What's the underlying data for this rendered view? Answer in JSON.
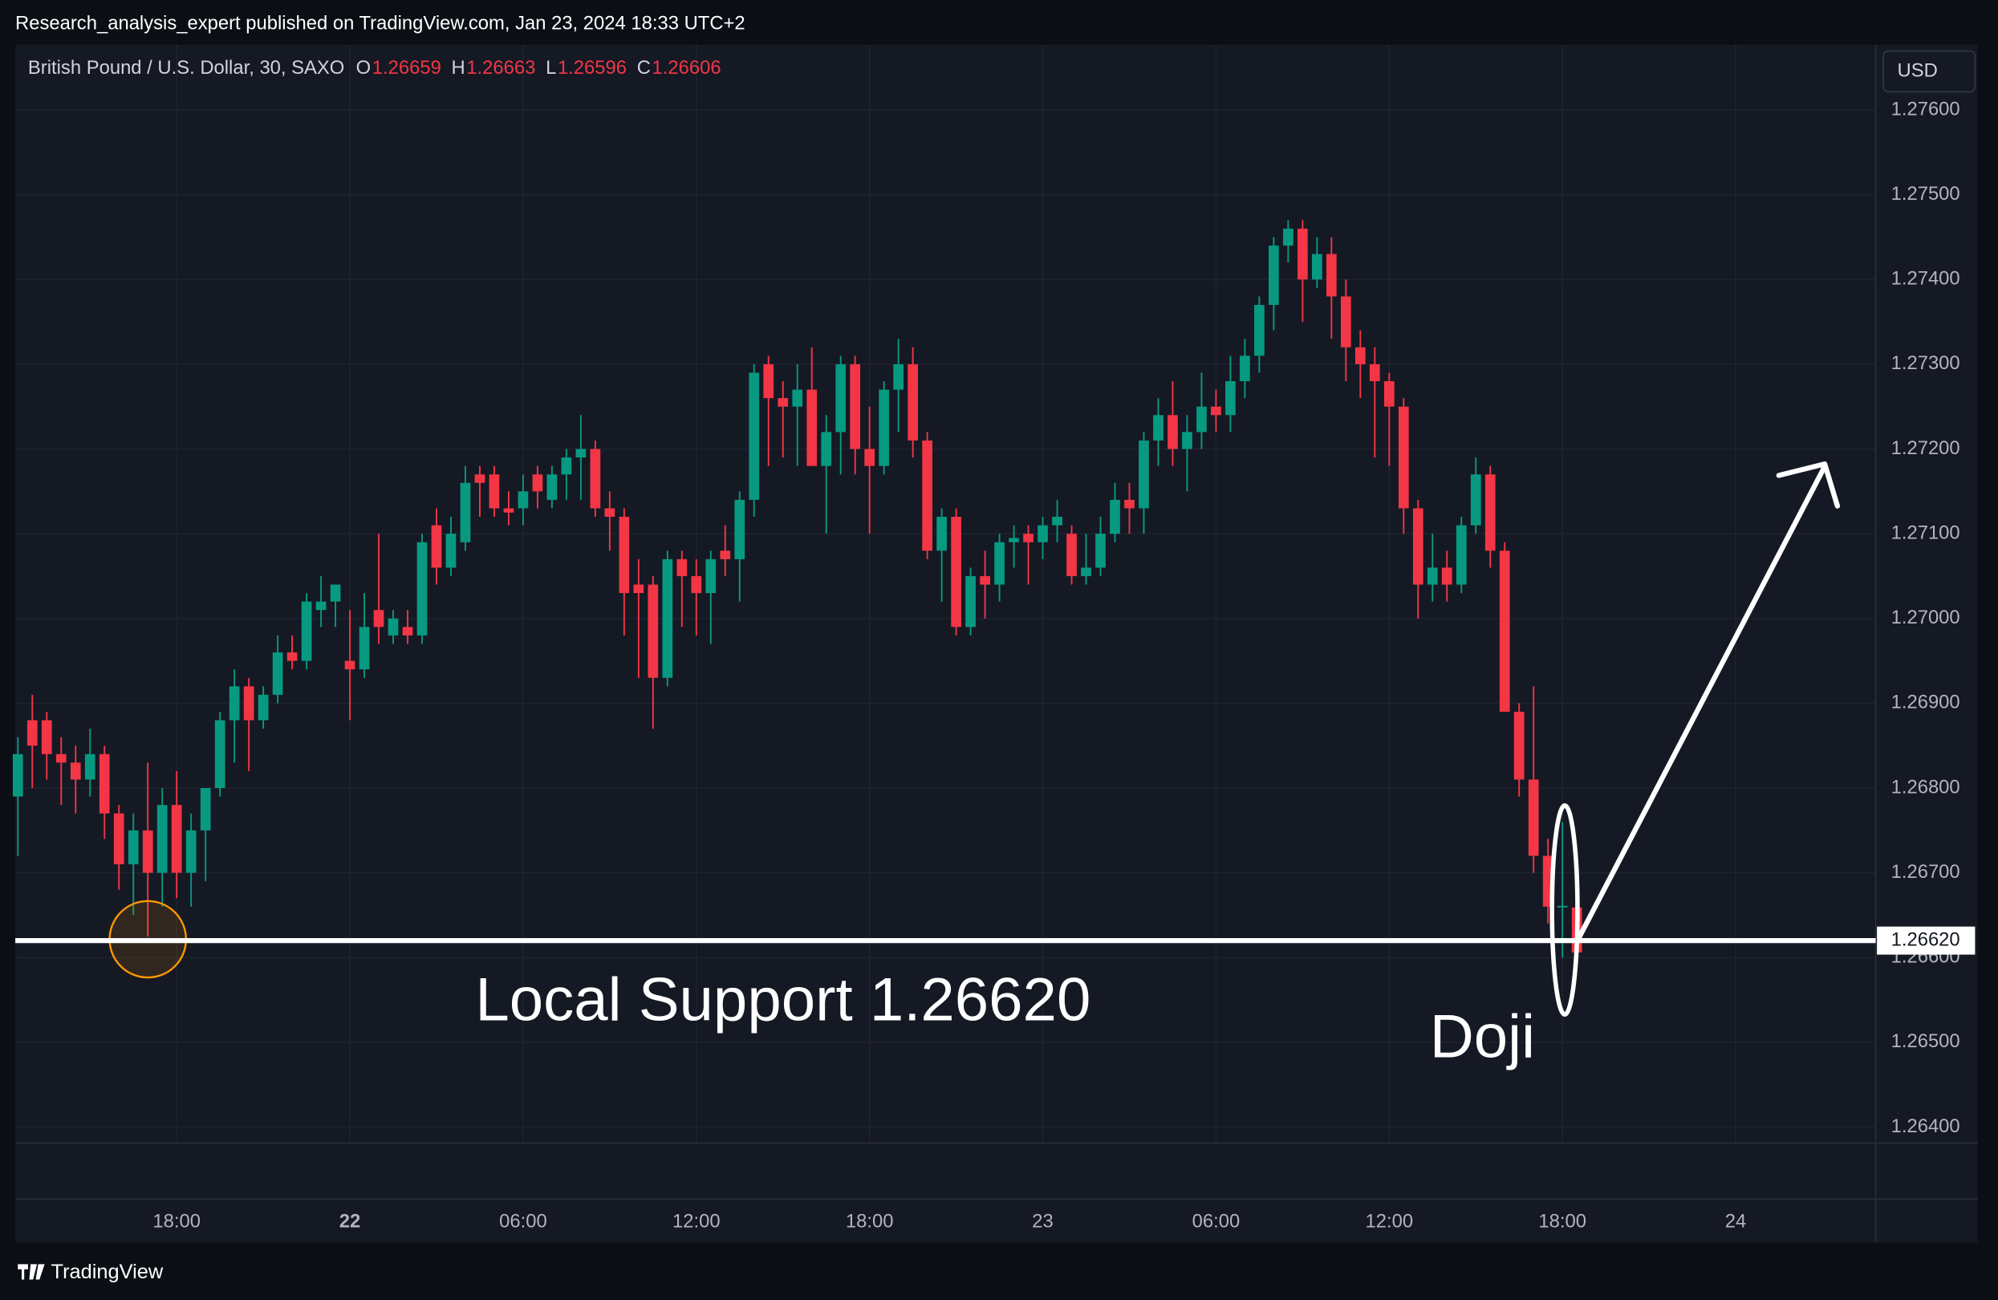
{
  "header": "Research_analysis_expert published on TradingView.com, Jan 23, 2024 18:33 UTC+2",
  "brand": "TradingView",
  "chart_data": {
    "type": "candlestick",
    "currency": "USD",
    "series": [
      {
        "name": "British Pound / U.S. Dollar, 30, SAXO",
        "open": [
          1.2679,
          1.2688,
          1.2688,
          1.2684,
          1.2683,
          1.2681,
          1.2684,
          1.2677,
          1.2671,
          1.2675,
          1.267,
          1.2678,
          1.267,
          1.2675,
          1.268,
          1.2688,
          1.2692,
          1.2688,
          1.2691,
          1.2696,
          1.2695,
          1.2701,
          1.2702,
          1.2695,
          1.2694,
          1.2701,
          1.2698,
          1.2699,
          1.2698,
          1.2711,
          1.2706,
          1.2709,
          1.2717,
          1.2717,
          1.2713,
          1.2713,
          1.2717,
          1.2714,
          1.2717,
          1.2719,
          1.272,
          1.2713,
          1.2712,
          1.2704,
          1.2704,
          1.2693,
          1.2707,
          1.2705,
          1.2703,
          1.2708,
          1.2707,
          1.2714,
          1.273,
          1.2726,
          1.2725,
          1.2727,
          1.2718,
          1.2722,
          1.273,
          1.272,
          1.2718,
          1.2727,
          1.273,
          1.2721,
          1.2708,
          1.2712,
          1.2699,
          1.2705,
          1.2704,
          1.2709,
          1.271,
          1.2709,
          1.2711,
          1.271,
          1.2705,
          1.2706,
          1.271,
          1.2714,
          1.2713,
          1.2721,
          1.2724,
          1.272,
          1.2722,
          1.2725,
          1.2724,
          1.2728,
          1.2731,
          1.2737,
          1.2744,
          1.2746,
          1.274,
          1.2743,
          1.2738,
          1.2732,
          1.273,
          1.2728,
          1.2725,
          1.2713,
          1.2704,
          1.2706,
          1.2704,
          1.2711,
          1.2717,
          1.2708,
          1.2689,
          1.2681,
          1.2672,
          1.2666,
          1.26659
        ],
        "high": [
          1.2686,
          1.2691,
          1.2689,
          1.2686,
          1.2685,
          1.2687,
          1.2685,
          1.2678,
          1.2677,
          1.2683,
          1.268,
          1.2682,
          1.2677,
          1.268,
          1.2689,
          1.2694,
          1.2693,
          1.2692,
          1.2698,
          1.2698,
          1.2703,
          1.2705,
          1.2704,
          1.2701,
          1.2703,
          1.271,
          1.2701,
          1.2701,
          1.271,
          1.2713,
          1.2712,
          1.2718,
          1.2718,
          1.2718,
          1.2715,
          1.2717,
          1.2718,
          1.2718,
          1.272,
          1.2724,
          1.2721,
          1.2715,
          1.2713,
          1.2707,
          1.2705,
          1.2708,
          1.2708,
          1.2707,
          1.2708,
          1.2711,
          1.2715,
          1.273,
          1.2731,
          1.2728,
          1.273,
          1.2732,
          1.2724,
          1.2731,
          1.2731,
          1.2725,
          1.2728,
          1.2733,
          1.2732,
          1.2722,
          1.2713,
          1.2713,
          1.2706,
          1.2708,
          1.271,
          1.2711,
          1.2711,
          1.2712,
          1.2714,
          1.2711,
          1.271,
          1.2712,
          1.2716,
          1.2716,
          1.2722,
          1.2726,
          1.2728,
          1.2724,
          1.2729,
          1.2727,
          1.2731,
          1.2733,
          1.2738,
          1.2745,
          1.2747,
          1.2747,
          1.2745,
          1.2745,
          1.274,
          1.2734,
          1.2732,
          1.2729,
          1.2726,
          1.2714,
          1.271,
          1.2708,
          1.2712,
          1.2719,
          1.2718,
          1.2709,
          1.269,
          1.2692,
          1.2674,
          1.2676,
          1.26663
        ],
        "low": [
          1.2672,
          1.268,
          1.2681,
          1.2678,
          1.2677,
          1.2679,
          1.2674,
          1.2668,
          1.2665,
          1.26625,
          1.2666,
          1.2667,
          1.2666,
          1.2669,
          1.2679,
          1.2683,
          1.2682,
          1.2687,
          1.269,
          1.2694,
          1.2694,
          1.2699,
          1.2699,
          1.2688,
          1.2693,
          1.2697,
          1.2697,
          1.2697,
          1.2697,
          1.2704,
          1.2705,
          1.2708,
          1.2712,
          1.2712,
          1.2711,
          1.2711,
          1.2713,
          1.2713,
          1.2714,
          1.2714,
          1.2712,
          1.2708,
          1.2698,
          1.2693,
          1.2687,
          1.2692,
          1.2699,
          1.2698,
          1.2697,
          1.2705,
          1.2702,
          1.2712,
          1.2718,
          1.2719,
          1.2718,
          1.2718,
          1.271,
          1.2717,
          1.2717,
          1.271,
          1.2717,
          1.2722,
          1.2719,
          1.2707,
          1.2702,
          1.2698,
          1.2698,
          1.27,
          1.2702,
          1.2706,
          1.2704,
          1.2707,
          1.2709,
          1.2704,
          1.2704,
          1.2705,
          1.2709,
          1.271,
          1.271,
          1.2718,
          1.2718,
          1.2715,
          1.272,
          1.2722,
          1.2722,
          1.2726,
          1.2729,
          1.2734,
          1.2742,
          1.2735,
          1.2739,
          1.2733,
          1.2728,
          1.2726,
          1.2719,
          1.2718,
          1.271,
          1.27,
          1.2702,
          1.2702,
          1.2703,
          1.271,
          1.2706,
          1.2689,
          1.2679,
          1.267,
          1.2664,
          1.266,
          1.26596
        ],
        "close": [
          1.2684,
          1.2685,
          1.2684,
          1.2683,
          1.2681,
          1.2684,
          1.2677,
          1.2671,
          1.2675,
          1.267,
          1.2678,
          1.267,
          1.2675,
          1.268,
          1.2688,
          1.2692,
          1.2688,
          1.2691,
          1.2696,
          1.2695,
          1.2702,
          1.2702,
          1.2704,
          1.2694,
          1.2699,
          1.2699,
          1.27,
          1.2698,
          1.2709,
          1.2706,
          1.271,
          1.2716,
          1.2716,
          1.2713,
          1.27125,
          1.2715,
          1.2715,
          1.2717,
          1.2719,
          1.272,
          1.2713,
          1.2712,
          1.2703,
          1.2703,
          1.2693,
          1.2707,
          1.2705,
          1.2703,
          1.2707,
          1.2707,
          1.2714,
          1.2729,
          1.2726,
          1.2725,
          1.2727,
          1.2718,
          1.2722,
          1.273,
          1.272,
          1.2718,
          1.2727,
          1.273,
          1.2721,
          1.2708,
          1.2712,
          1.2699,
          1.2705,
          1.2704,
          1.2709,
          1.27095,
          1.2709,
          1.2711,
          1.2712,
          1.2705,
          1.2706,
          1.271,
          1.2714,
          1.2713,
          1.2721,
          1.2724,
          1.272,
          1.2722,
          1.2725,
          1.2724,
          1.2728,
          1.2731,
          1.2737,
          1.2744,
          1.2746,
          1.274,
          1.2743,
          1.2738,
          1.2732,
          1.273,
          1.2728,
          1.2725,
          1.2713,
          1.2704,
          1.2706,
          1.2704,
          1.2711,
          1.2717,
          1.2708,
          1.2689,
          1.2681,
          1.2672,
          1.2666,
          1.26661,
          1.26606
        ]
      }
    ],
    "ohlc_labels": [
      "O",
      "H",
      "L",
      "C"
    ],
    "x": [
      0,
      1,
      2,
      3,
      4,
      5,
      6,
      7,
      8,
      9,
      10,
      11,
      12,
      13,
      14,
      15,
      16,
      17,
      18,
      19,
      20,
      21,
      22,
      23,
      24,
      25,
      26,
      27,
      28,
      29,
      30,
      31,
      32,
      33,
      34,
      35,
      36,
      37,
      38,
      39,
      40,
      41,
      42,
      43,
      44,
      45,
      46,
      47,
      48,
      49,
      50,
      51,
      52,
      53,
      54,
      55,
      56,
      57,
      58,
      59,
      60,
      61,
      62,
      63,
      64,
      65,
      66,
      67,
      68,
      69,
      70,
      71,
      72,
      73,
      74,
      75,
      76,
      77,
      78,
      79,
      80,
      81,
      82,
      83,
      84,
      85,
      86,
      87,
      88,
      89,
      90,
      91,
      92,
      93,
      94,
      95,
      96,
      97,
      98,
      99,
      100,
      101,
      102,
      103,
      104,
      105,
      106,
      107,
      108
    ],
    "xlim": [
      -0.18,
      128.7
    ],
    "xticks": [
      {
        "value": 11,
        "label": "18:00"
      },
      {
        "value": 23,
        "label": "22"
      },
      {
        "value": 35,
        "label": "06:00"
      },
      {
        "value": 47,
        "label": "12:00"
      },
      {
        "value": 59,
        "label": "18:00"
      },
      {
        "value": 71,
        "label": "23"
      },
      {
        "value": 83,
        "label": "06:00"
      },
      {
        "value": 95,
        "label": "12:00"
      },
      {
        "value": 107,
        "label": "18:00"
      },
      {
        "value": 119,
        "label": "24"
      }
    ],
    "ylim": [
      1.26381,
      1.27677
    ],
    "yticks": [
      {
        "value": 1.276,
        "label": "1.27600"
      },
      {
        "value": 1.275,
        "label": "1.27500"
      },
      {
        "value": 1.274,
        "label": "1.27400"
      },
      {
        "value": 1.273,
        "label": "1.27300"
      },
      {
        "value": 1.272,
        "label": "1.27200"
      },
      {
        "value": 1.271,
        "label": "1.27100"
      },
      {
        "value": 1.27,
        "label": "1.27000"
      },
      {
        "value": 1.269,
        "label": "1.26900"
      },
      {
        "value": 1.268,
        "label": "1.26800"
      },
      {
        "value": 1.267,
        "label": "1.26700"
      },
      {
        "value": 1.266,
        "label": "1.26600"
      },
      {
        "value": 1.265,
        "label": "1.26500"
      },
      {
        "value": 1.264,
        "label": "1.26400"
      }
    ],
    "up_color": "#089981",
    "down_color": "#f23645",
    "grid": true,
    "annotations": [
      {
        "value": 1.2662,
        "label": "1.26620",
        "text": "Local Support 1.26620"
      },
      {
        "text": "Doji"
      }
    ]
  }
}
